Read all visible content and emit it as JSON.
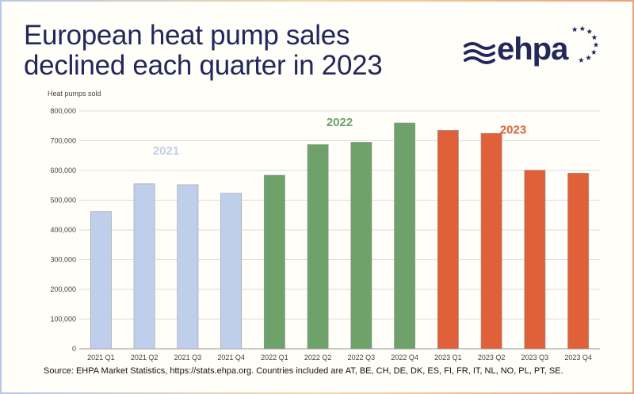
{
  "title": "European heat pump sales declined each quarter in 2023",
  "logo_text": "ehpa",
  "y_axis_label": "Heat pumps sold",
  "source": "Source: EHPA Market Statistics, https://stats.ehpa.org. Countries included are AT, BE, CH, DE, DK, ES, FI, FR, IT, NL, NO, PL, PT, SE.",
  "colors": {
    "2021": "#bfcfeb",
    "2022": "#6fa16b",
    "2023": "#e0603a",
    "title": "#22275c"
  },
  "chart_data": {
    "type": "bar",
    "ylabel": "Heat pumps sold",
    "ylim": [
      0,
      800000
    ],
    "yticks": [
      0,
      100000,
      200000,
      300000,
      400000,
      500000,
      600000,
      700000,
      800000
    ],
    "ytick_labels": [
      "0",
      "100,000",
      "200,000",
      "300,000",
      "400,000",
      "500,000",
      "600,000",
      "700,000",
      "800,000"
    ],
    "categories": [
      "2021 Q1",
      "2021 Q2",
      "2021 Q3",
      "2021 Q4",
      "2022 Q1",
      "2022 Q2",
      "2022 Q3",
      "2022 Q4",
      "2023 Q1",
      "2023 Q2",
      "2023 Q3",
      "2023 Q4"
    ],
    "values": [
      462000,
      555000,
      552000,
      523000,
      584000,
      687000,
      695000,
      760000,
      735000,
      725000,
      601000,
      591000
    ],
    "groups": [
      "2021",
      "2021",
      "2021",
      "2021",
      "2022",
      "2022",
      "2022",
      "2022",
      "2023",
      "2023",
      "2023",
      "2023"
    ],
    "annotations": [
      {
        "text": "2021",
        "color": "#bfcfeb"
      },
      {
        "text": "2022",
        "color": "#6fa16b"
      },
      {
        "text": "2023",
        "color": "#e0603a"
      }
    ],
    "grid": true
  }
}
